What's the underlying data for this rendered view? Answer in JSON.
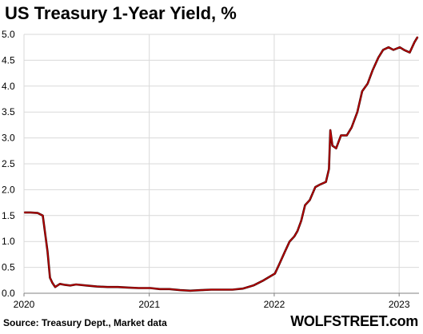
{
  "chart_data": {
    "type": "line",
    "title": "US Treasury 1-Year Yield, %",
    "xlabel": "",
    "ylabel": "",
    "source": "Source: Treasury Dept., Market data",
    "brand": "WOLFSTREET.com",
    "line_color": "#c00000",
    "grid": true,
    "ylim": [
      0,
      5.0
    ],
    "xlim": [
      "2020-01-01",
      "2023-02-28"
    ],
    "yticks": [
      "0.0",
      "0.5",
      "1.0",
      "1.5",
      "2.0",
      "2.5",
      "3.0",
      "3.5",
      "4.0",
      "4.5",
      "5.0"
    ],
    "xticks": [
      {
        "date": "2020-01-01",
        "label": "2020"
      },
      {
        "date": "2021-01-01",
        "label": "2021"
      },
      {
        "date": "2022-01-01",
        "label": "2022"
      },
      {
        "date": "2023-01-01",
        "label": "2023"
      }
    ],
    "series": [
      {
        "x": [
          "2020-01-02",
          "2020-01-20",
          "2020-02-10",
          "2020-02-25",
          "2020-03-03",
          "2020-03-10",
          "2020-03-17",
          "2020-03-24",
          "2020-04-01",
          "2020-04-15",
          "2020-05-01",
          "2020-05-15",
          "2020-06-01",
          "2020-07-01",
          "2020-08-01",
          "2020-09-01",
          "2020-10-01",
          "2020-11-01",
          "2020-12-01",
          "2021-01-04",
          "2021-02-01",
          "2021-03-01",
          "2021-04-01",
          "2021-05-01",
          "2021-06-01",
          "2021-07-01",
          "2021-08-01",
          "2021-09-01",
          "2021-10-01",
          "2021-11-01",
          "2021-12-01",
          "2022-01-03",
          "2022-01-15",
          "2022-02-01",
          "2022-02-15",
          "2022-03-01",
          "2022-03-10",
          "2022-03-21",
          "2022-04-01",
          "2022-04-15",
          "2022-05-01",
          "2022-05-15",
          "2022-06-01",
          "2022-06-10",
          "2022-06-14",
          "2022-06-20",
          "2022-07-01",
          "2022-07-15",
          "2022-08-01",
          "2022-08-15",
          "2022-09-01",
          "2022-09-15",
          "2022-10-01",
          "2022-10-15",
          "2022-11-01",
          "2022-11-15",
          "2022-12-01",
          "2022-12-15",
          "2023-01-03",
          "2023-01-15",
          "2023-02-01",
          "2023-02-15",
          "2023-02-24"
        ],
        "values": [
          1.56,
          1.56,
          1.55,
          1.5,
          1.15,
          0.8,
          0.3,
          0.2,
          0.12,
          0.18,
          0.16,
          0.15,
          0.17,
          0.15,
          0.13,
          0.12,
          0.12,
          0.11,
          0.1,
          0.1,
          0.08,
          0.08,
          0.06,
          0.05,
          0.06,
          0.07,
          0.07,
          0.07,
          0.09,
          0.15,
          0.25,
          0.38,
          0.55,
          0.8,
          1.0,
          1.1,
          1.2,
          1.4,
          1.7,
          1.8,
          2.05,
          2.1,
          2.15,
          2.4,
          3.15,
          2.85,
          2.8,
          3.05,
          3.05,
          3.2,
          3.5,
          3.9,
          4.05,
          4.3,
          4.55,
          4.7,
          4.75,
          4.7,
          4.75,
          4.7,
          4.65,
          4.85,
          4.95
        ]
      }
    ]
  }
}
